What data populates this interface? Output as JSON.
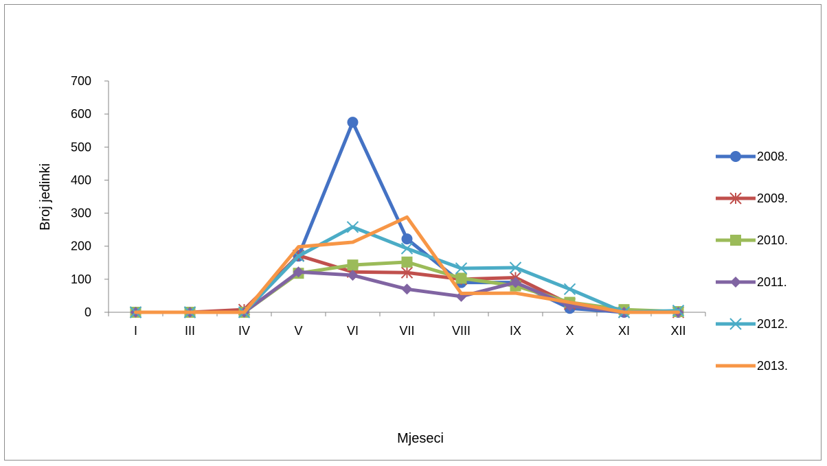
{
  "chart_data": {
    "type": "line",
    "xlabel": "Mjeseci",
    "ylabel": "Broj jedinki",
    "ylim": [
      0,
      700
    ],
    "yticks": [
      0,
      100,
      200,
      300,
      400,
      500,
      600,
      700
    ],
    "categories": [
      "I",
      "III",
      "IV",
      "V",
      "VI",
      "VII",
      "VIII",
      "IX",
      "X",
      "XI",
      "XII"
    ],
    "grid": false,
    "legend_position": "right",
    "series": [
      {
        "name": "2008.",
        "color": "#4472c4",
        "marker": "circle",
        "values": [
          0,
          0,
          0,
          170,
          575,
          222,
          90,
          90,
          12,
          0,
          0
        ]
      },
      {
        "name": "2009.",
        "color": "#c0504d",
        "marker": "asterisk",
        "values": [
          0,
          0,
          8,
          172,
          122,
          120,
          100,
          105,
          25,
          0,
          0
        ]
      },
      {
        "name": "2010.",
        "color": "#9bbb59",
        "marker": "square",
        "values": [
          0,
          0,
          0,
          118,
          143,
          152,
          103,
          80,
          30,
          8,
          2
        ]
      },
      {
        "name": "2011.",
        "color": "#8064a2",
        "marker": "diamond",
        "values": [
          0,
          0,
          0,
          122,
          112,
          70,
          48,
          90,
          20,
          0,
          0
        ]
      },
      {
        "name": "2012.",
        "color": "#4bacc6",
        "marker": "x",
        "values": [
          0,
          0,
          0,
          170,
          258,
          193,
          133,
          135,
          70,
          0,
          5
        ]
      },
      {
        "name": "2013.",
        "color": "#f79646",
        "marker": "none",
        "values": [
          0,
          0,
          0,
          198,
          212,
          288,
          57,
          58,
          30,
          0,
          0
        ]
      }
    ]
  }
}
